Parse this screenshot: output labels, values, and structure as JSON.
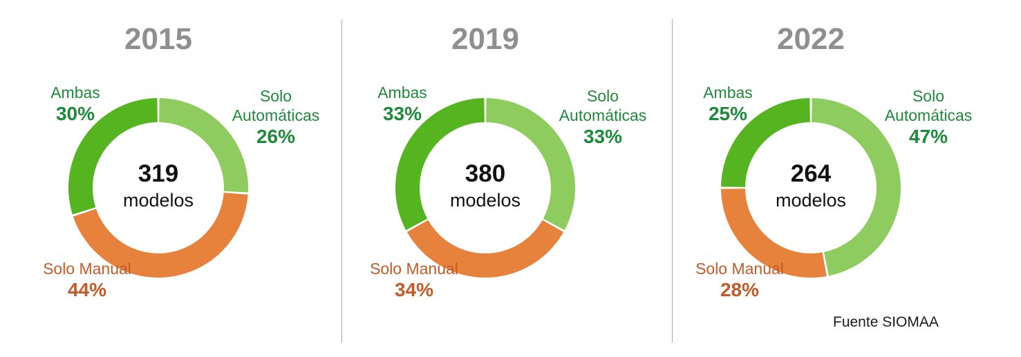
{
  "source_note": "Fuente SIOMAA",
  "colors": {
    "slice_ambas": "#55b41f",
    "slice_solo_automaticas": "#8ecc5f",
    "slice_solo_manual": "#e6823c",
    "label_green": "#1d8a39",
    "label_orange": "#c35b28",
    "year_title_gray": "#8f8f8f",
    "separator_gray": "#a8a8a8"
  },
  "chart_data": [
    {
      "type": "pie",
      "title": "2015",
      "center_value": "319",
      "center_label": "modelos",
      "layout": {
        "donut": true,
        "start_angle": "top",
        "direction": "clockwise",
        "labels": "outside",
        "legend": false
      },
      "slices": [
        {
          "name": "Solo Automáticas",
          "pct": 26,
          "pct_label": "26%",
          "color": "#8ecc5f",
          "label_color": "#1d8a39"
        },
        {
          "name": "Solo Manual",
          "pct": 44,
          "pct_label": "44%",
          "color": "#e6823c",
          "label_color": "#c35b28"
        },
        {
          "name": "Ambas",
          "pct": 30,
          "pct_label": "30%",
          "color": "#55b41f",
          "label_color": "#1d8a39"
        }
      ]
    },
    {
      "type": "pie",
      "title": "2019",
      "center_value": "380",
      "center_label": "modelos",
      "layout": {
        "donut": true,
        "start_angle": "top",
        "direction": "clockwise",
        "labels": "outside",
        "legend": false
      },
      "slices": [
        {
          "name": "Solo Automáticas",
          "pct": 33,
          "pct_label": "33%",
          "color": "#8ecc5f",
          "label_color": "#1d8a39"
        },
        {
          "name": "Solo Manual",
          "pct": 34,
          "pct_label": "34%",
          "color": "#e6823c",
          "label_color": "#c35b28"
        },
        {
          "name": "Ambas",
          "pct": 33,
          "pct_label": "33%",
          "color": "#55b41f",
          "label_color": "#1d8a39"
        }
      ]
    },
    {
      "type": "pie",
      "title": "2022",
      "center_value": "264",
      "center_label": "modelos",
      "layout": {
        "donut": true,
        "start_angle": "top",
        "direction": "clockwise",
        "labels": "outside",
        "legend": false
      },
      "slices": [
        {
          "name": "Solo Automáticas",
          "pct": 47,
          "pct_label": "47%",
          "color": "#8ecc5f",
          "label_color": "#1d8a39"
        },
        {
          "name": "Solo Manual",
          "pct": 28,
          "pct_label": "28%",
          "color": "#e6823c",
          "label_color": "#c35b28"
        },
        {
          "name": "Ambas",
          "pct": 25,
          "pct_label": "25%",
          "color": "#55b41f",
          "label_color": "#1d8a39"
        }
      ]
    }
  ]
}
